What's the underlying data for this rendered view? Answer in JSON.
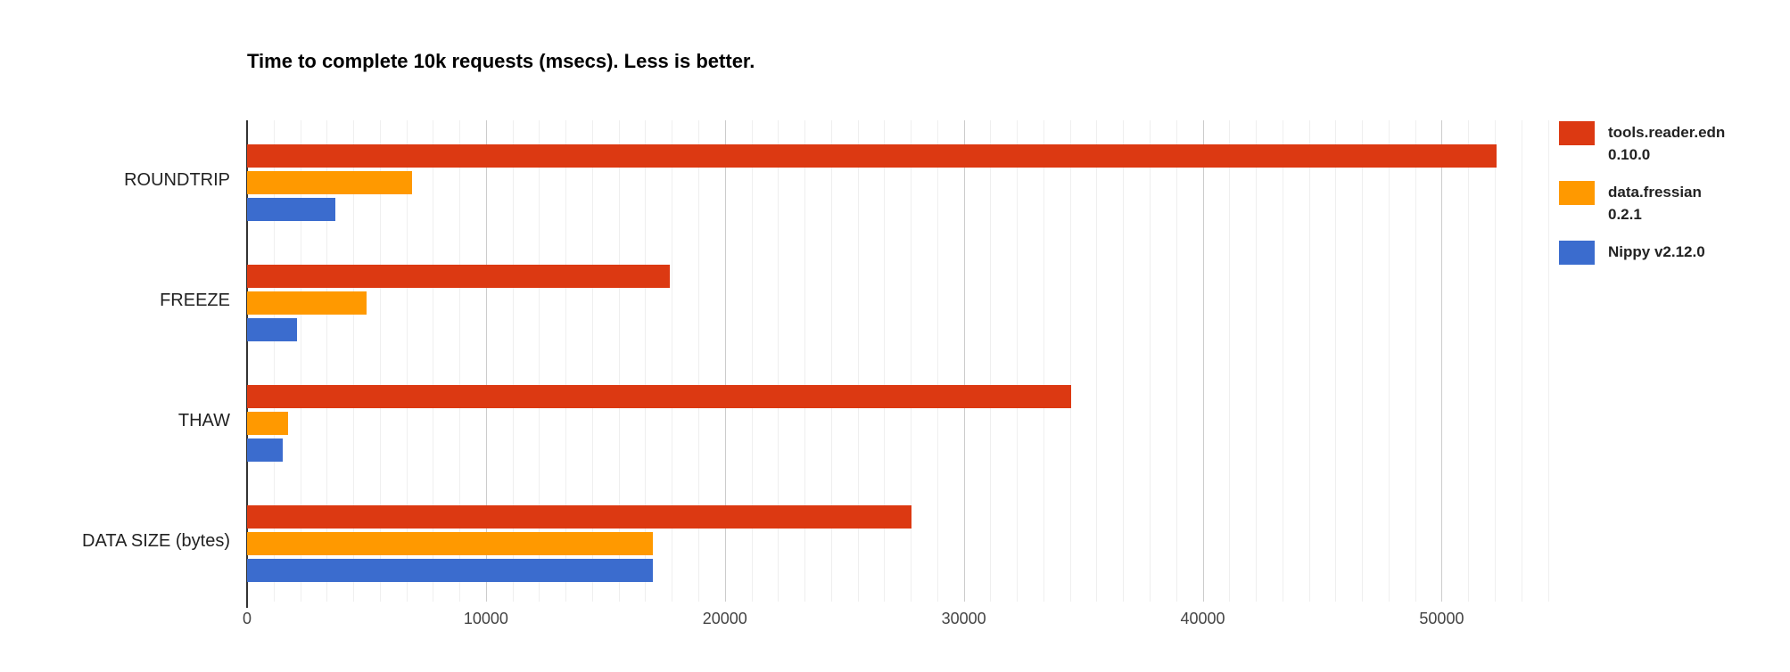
{
  "title": "Time to complete 10k requests (msecs). Less is better.",
  "colors": {
    "series_red": "#dc3912",
    "series_orange": "#ff9900",
    "series_blue": "#3b6cce",
    "gridline_minor": "#efefef",
    "gridline_major": "#cccccc",
    "axis_line": "#333333",
    "title_text": "#000000",
    "category_text": "#222222",
    "tick_text": "#444444",
    "legend_text": "#222222",
    "background": "#ffffff"
  },
  "chart_data": {
    "type": "bar",
    "orientation": "horizontal",
    "title": "Time to complete 10k requests (msecs). Less is better.",
    "categories": [
      "ROUNDTRIP",
      "FREEZE",
      "THAW",
      "DATA SIZE (bytes)"
    ],
    "series": [
      {
        "name": "tools.reader.edn 0.10.0",
        "legend_lines": [
          "tools.reader.edn",
          "0.10.0"
        ],
        "color": "#dc3912",
        "values": [
          52300,
          17700,
          34500,
          27800
        ]
      },
      {
        "name": "data.fressian 0.2.1",
        "legend_lines": [
          "data.fressian",
          "0.2.1"
        ],
        "color": "#ff9900",
        "values": [
          6900,
          5000,
          1700,
          17000
        ]
      },
      {
        "name": "Nippy v2.12.0",
        "legend_lines": [
          "Nippy v2.12.0"
        ],
        "color": "#3b6cce",
        "values": [
          3700,
          2100,
          1500,
          17000
        ]
      }
    ],
    "x_axis": {
      "ticks": [
        0,
        10000,
        20000,
        30000,
        40000,
        50000
      ],
      "tick_labels": [
        "0",
        "10000",
        "20000",
        "30000",
        "40000",
        "50000"
      ],
      "max": 54500,
      "minor_intervals_per_major": 9
    },
    "xlabel": "",
    "ylabel": "",
    "grid": true,
    "legend_position": "right"
  }
}
